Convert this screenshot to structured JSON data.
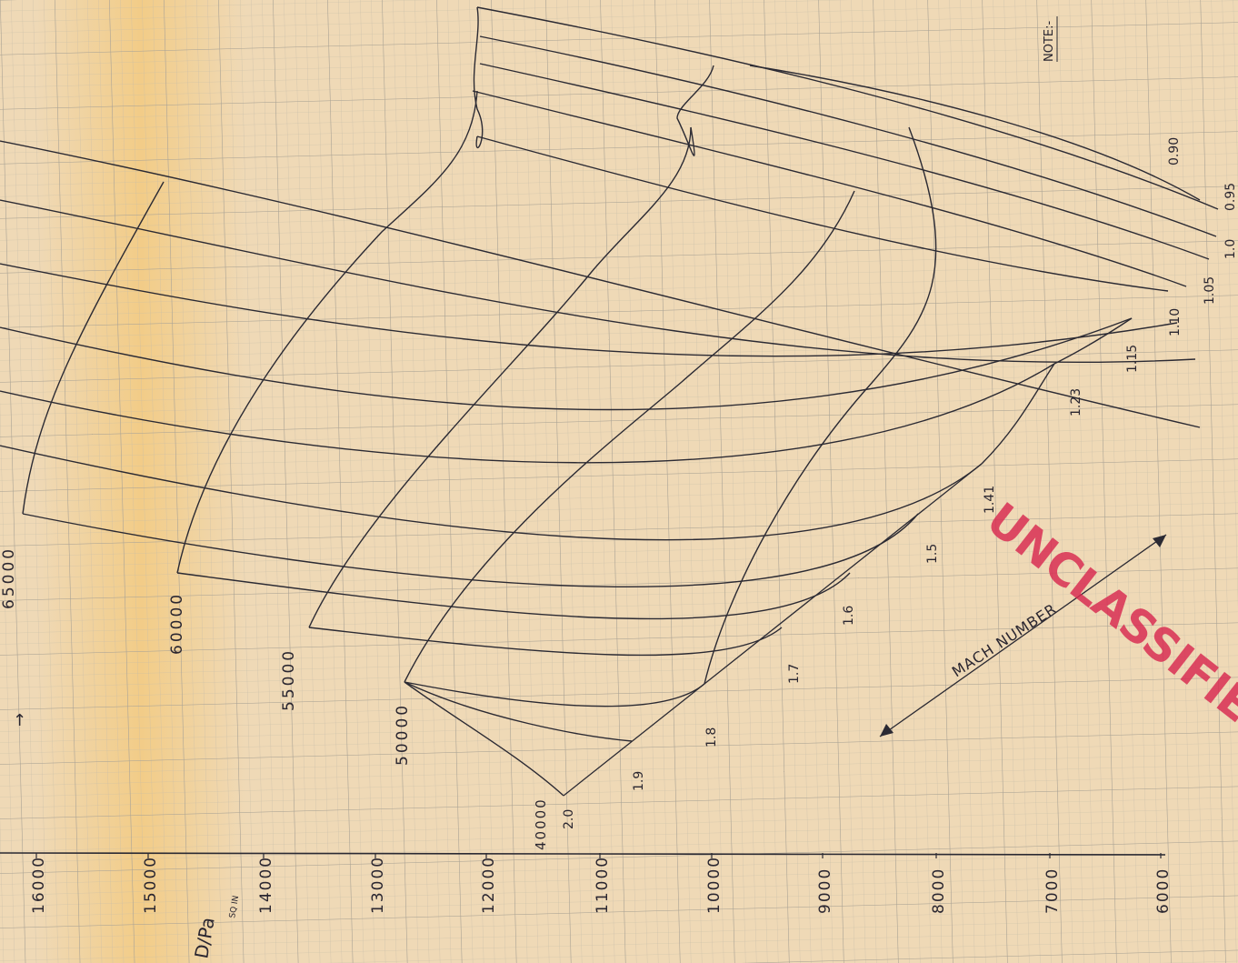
{
  "chart_data": {
    "type": "line",
    "title": "",
    "xlabel": "D/Pa",
    "xlabel_unit": "SQ IN",
    "x_axis_ticks": [
      "16000",
      "15000",
      "14000",
      "13000",
      "12000",
      "11000",
      "10000",
      "9000",
      "8000",
      "7000",
      "6000"
    ],
    "altitude_curves": [
      {
        "label": "65000"
      },
      {
        "label": "60000"
      },
      {
        "label": "55000"
      },
      {
        "label": "50000"
      },
      {
        "label": "40000"
      }
    ],
    "mach_curves": [
      "2.0",
      "1.9",
      "1.8",
      "1.7",
      "1.6",
      "1.5",
      "1.41",
      "1.23",
      "1.15",
      "1.10",
      "1.05",
      "1.0",
      "0.95",
      "0.90"
    ],
    "mach_axis_label": "MACH NUMBER",
    "note_label": "NOTE:-",
    "stamp_text": "UNCLASSIFIED",
    "colors": {
      "paper": "#efd9b6",
      "grid": "#b7b0a0",
      "ink": "#2b2a33",
      "stamp": "#d8284f"
    }
  }
}
